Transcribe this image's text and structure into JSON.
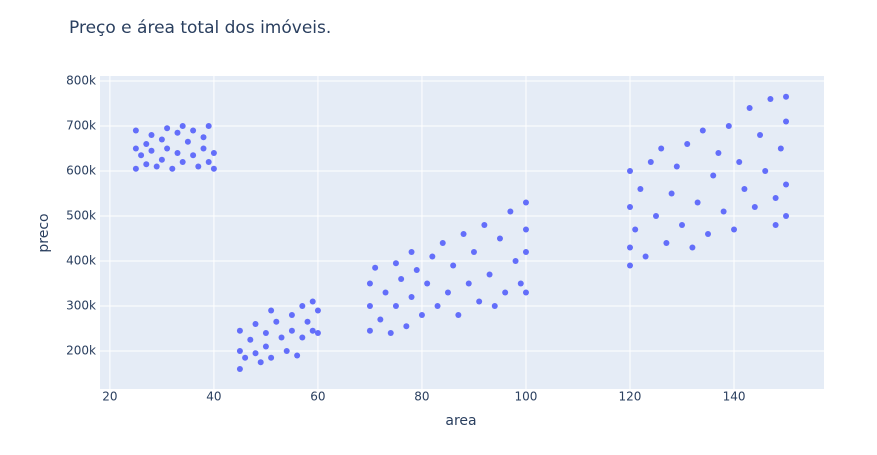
{
  "chart_data": {
    "type": "scatter",
    "title": "Preço e área total dos imóveis.",
    "x_label": "area",
    "y_label": "preco",
    "color": "#636efa",
    "grid": true,
    "xlim": [
      18.1,
      157.3
    ],
    "xticks": [
      20,
      40,
      60,
      80,
      100,
      120,
      140
    ],
    "ylim": [
      115600,
      811000
    ],
    "yticks": [
      {
        "value": 200000,
        "label": "200k"
      },
      {
        "value": 300000,
        "label": "300k"
      },
      {
        "value": 400000,
        "label": "400k"
      },
      {
        "value": 500000,
        "label": "500k"
      },
      {
        "value": 600000,
        "label": "600k"
      },
      {
        "value": 700000,
        "label": "700k"
      },
      {
        "value": 800000,
        "label": "800k"
      }
    ],
    "x": [
      25,
      25,
      25,
      26,
      27,
      27,
      28,
      28,
      29,
      30,
      30,
      31,
      31,
      32,
      33,
      33,
      34,
      34,
      35,
      36,
      36,
      37,
      38,
      38,
      39,
      39,
      40,
      40,
      45,
      45,
      45,
      46,
      47,
      48,
      48,
      49,
      50,
      50,
      51,
      51,
      52,
      53,
      54,
      55,
      55,
      56,
      57,
      57,
      58,
      59,
      59,
      60,
      60,
      70,
      70,
      70,
      71,
      72,
      73,
      74,
      75,
      75,
      76,
      77,
      78,
      78,
      79,
      80,
      81,
      82,
      83,
      84,
      85,
      86,
      87,
      88,
      89,
      90,
      91,
      92,
      93,
      94,
      95,
      96,
      97,
      98,
      99,
      100,
      100,
      100,
      100,
      120,
      120,
      120,
      120,
      121,
      122,
      123,
      124,
      125,
      126,
      127,
      128,
      129,
      130,
      131,
      132,
      133,
      134,
      135,
      136,
      137,
      138,
      139,
      140,
      141,
      142,
      143,
      144,
      145,
      146,
      147,
      148,
      148,
      149,
      150,
      150,
      150,
      150
    ],
    "values": [
      605000,
      650000,
      690000,
      635000,
      660000,
      615000,
      680000,
      645000,
      610000,
      670000,
      625000,
      695000,
      650000,
      605000,
      685000,
      640000,
      700000,
      620000,
      665000,
      690000,
      635000,
      610000,
      675000,
      650000,
      700000,
      620000,
      640000,
      605000,
      160000,
      200000,
      245000,
      185000,
      225000,
      260000,
      195000,
      175000,
      240000,
      210000,
      290000,
      185000,
      265000,
      230000,
      200000,
      280000,
      245000,
      190000,
      300000,
      230000,
      265000,
      310000,
      245000,
      290000,
      240000,
      245000,
      300000,
      350000,
      385000,
      270000,
      330000,
      240000,
      395000,
      300000,
      360000,
      255000,
      420000,
      320000,
      380000,
      280000,
      350000,
      410000,
      300000,
      440000,
      330000,
      390000,
      280000,
      460000,
      350000,
      420000,
      310000,
      480000,
      370000,
      300000,
      450000,
      330000,
      510000,
      400000,
      350000,
      530000,
      470000,
      420000,
      330000,
      390000,
      430000,
      520000,
      600000,
      470000,
      560000,
      410000,
      620000,
      500000,
      650000,
      440000,
      550000,
      610000,
      480000,
      660000,
      430000,
      530000,
      690000,
      460000,
      590000,
      640000,
      510000,
      700000,
      470000,
      620000,
      560000,
      740000,
      520000,
      680000,
      600000,
      760000,
      480000,
      540000,
      650000,
      765000,
      710000,
      570000,
      500000
    ]
  }
}
